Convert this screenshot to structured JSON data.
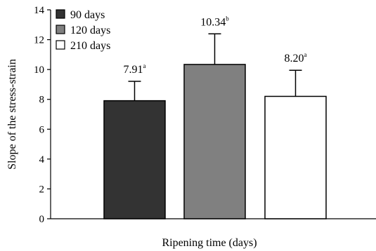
{
  "chart_data": {
    "type": "bar",
    "xlabel": "Ripening time (days)",
    "ylabel": "Slope of the stress-strain",
    "ylim": [
      0,
      14
    ],
    "yticks": [
      0,
      2,
      4,
      6,
      8,
      10,
      12,
      14
    ],
    "grid": false,
    "legend": "top-left",
    "series": [
      {
        "name": "90 days",
        "value": 7.91,
        "error": 1.3,
        "label": "7.91",
        "letter": "a",
        "color": "#333333"
      },
      {
        "name": "120 days",
        "value": 10.34,
        "error": 2.05,
        "label": "10.34",
        "letter": "b",
        "color": "#808080"
      },
      {
        "name": "210 days",
        "value": 8.2,
        "error": 1.75,
        "label": "8.20",
        "letter": "a",
        "color": "#ffffff"
      }
    ]
  }
}
